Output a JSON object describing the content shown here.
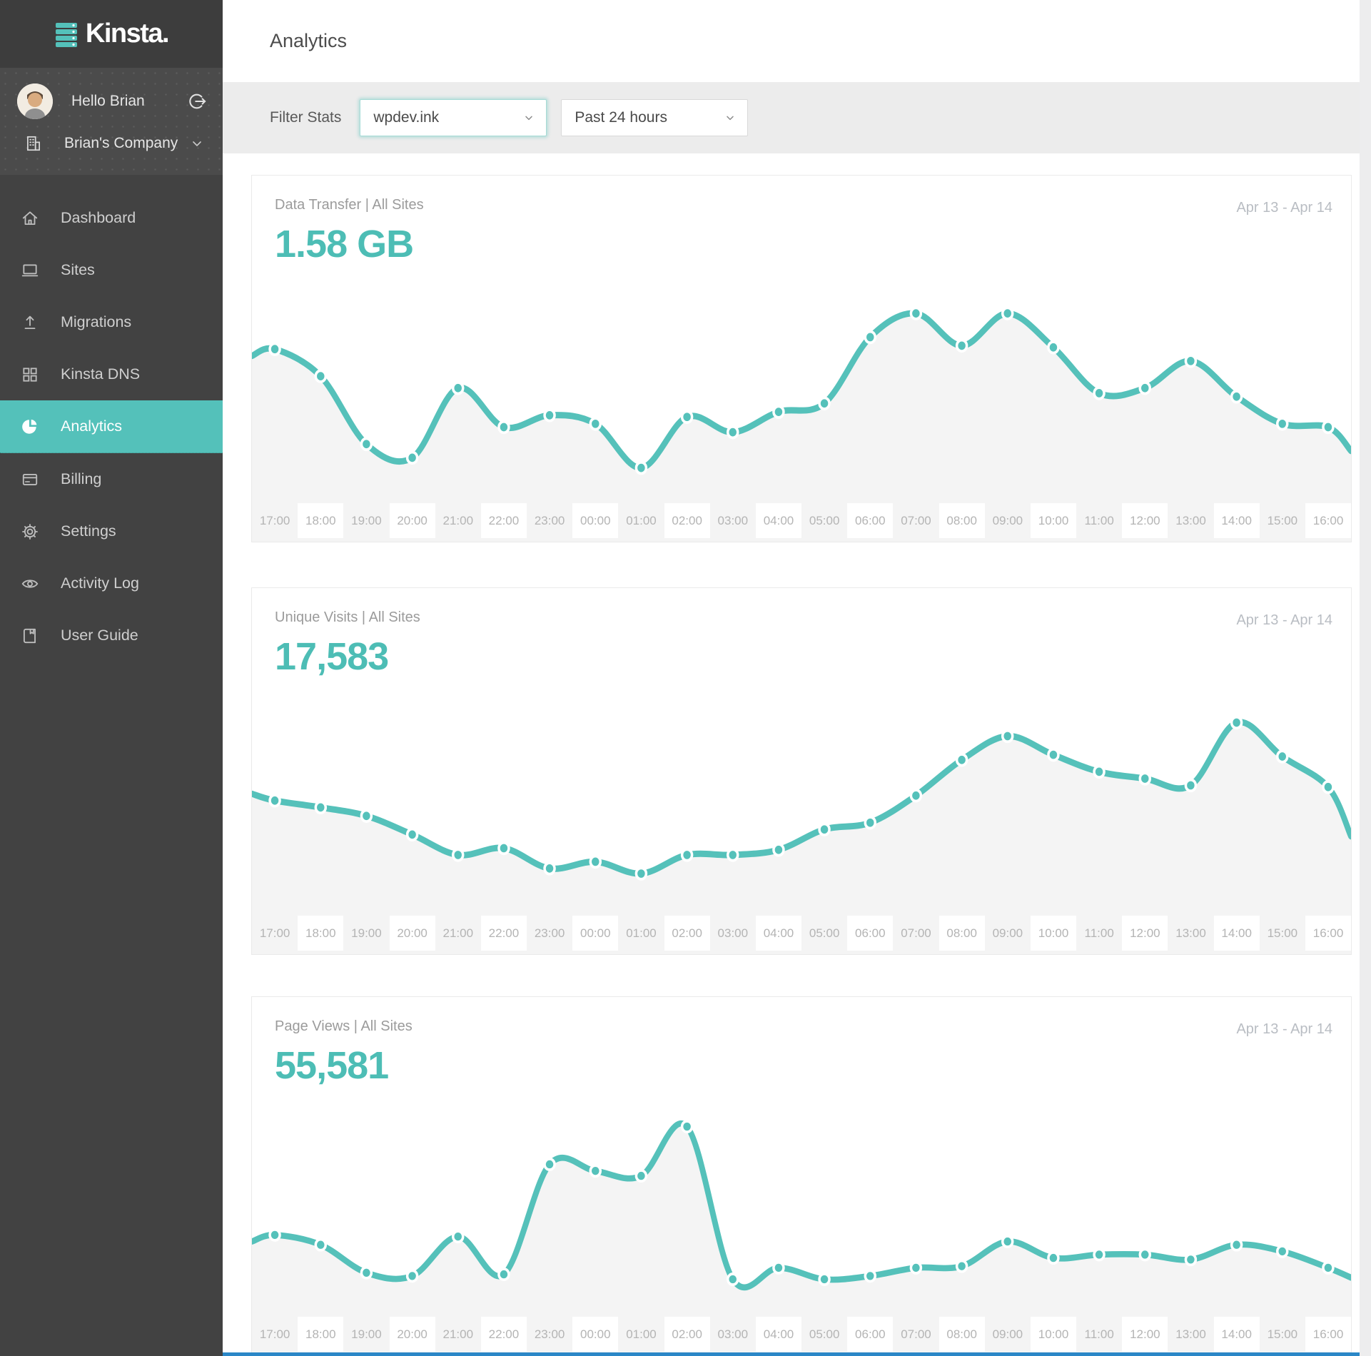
{
  "sidebar": {
    "logo_text": "Kinsta.",
    "greeting": "Hello Brian",
    "company": "Brian's Company",
    "items": [
      {
        "label": "Dashboard",
        "icon": "home-icon",
        "active": false
      },
      {
        "label": "Sites",
        "icon": "sites-icon",
        "active": false
      },
      {
        "label": "Migrations",
        "icon": "upload-icon",
        "active": false
      },
      {
        "label": "Kinsta DNS",
        "icon": "grid-icon",
        "active": false
      },
      {
        "label": "Analytics",
        "icon": "pie-chart-icon",
        "active": true
      },
      {
        "label": "Billing",
        "icon": "credit-card-icon",
        "active": false
      },
      {
        "label": "Settings",
        "icon": "gear-icon",
        "active": false
      },
      {
        "label": "Activity Log",
        "icon": "eye-icon",
        "active": false
      },
      {
        "label": "User Guide",
        "icon": "book-icon",
        "active": false
      }
    ]
  },
  "header": {
    "title": "Analytics"
  },
  "filters": {
    "label": "Filter Stats",
    "site_selected": "wpdev.ink",
    "range_selected": "Past 24 hours"
  },
  "colors": {
    "accent_teal": "#54c1ba",
    "stat_teal": "#4dbdb5",
    "sidebar_bg": "#424242",
    "sidebar_logo_bg": "#3d3d3d",
    "sidebar_user_bg": "#4b4b4b",
    "filter_band_bg": "#ececec",
    "chart_area_fill": "#f4f4f4",
    "x_label_text": "#b4b4b4",
    "bottom_bar_blue": "#2b87c7"
  },
  "chart_data": [
    {
      "type": "line",
      "label": "Data Transfer | All Sites",
      "stat": "1.58 GB",
      "date_range": "Apr 13 - Apr 14",
      "x_categories": [
        "17:00",
        "18:00",
        "19:00",
        "20:00",
        "21:00",
        "22:00",
        "23:00",
        "00:00",
        "01:00",
        "02:00",
        "03:00",
        "04:00",
        "05:00",
        "06:00",
        "07:00",
        "08:00",
        "09:00",
        "10:00",
        "11:00",
        "12:00",
        "13:00",
        "14:00",
        "15:00",
        "16:00"
      ],
      "values_relative_pct": [
        75,
        59,
        19,
        11,
        52,
        29,
        36,
        31,
        5,
        35,
        26,
        38,
        43,
        82,
        96,
        77,
        96,
        76,
        49,
        52,
        68,
        47,
        31,
        29
      ],
      "edge_left_pct": 71,
      "edge_right_pct": 15,
      "y_axis_shown": false,
      "grid": false,
      "line_color": "#55c1ba",
      "area_color": "#f4f4f4"
    },
    {
      "type": "line",
      "label": "Unique Visits | All Sites",
      "stat": "17,583",
      "date_range": "Apr 13 - Apr 14",
      "x_categories": [
        "17:00",
        "18:00",
        "19:00",
        "20:00",
        "21:00",
        "22:00",
        "23:00",
        "00:00",
        "01:00",
        "02:00",
        "03:00",
        "04:00",
        "05:00",
        "06:00",
        "07:00",
        "08:00",
        "09:00",
        "10:00",
        "11:00",
        "12:00",
        "13:00",
        "14:00",
        "15:00",
        "16:00"
      ],
      "values_relative_pct": [
        52,
        48,
        43,
        32,
        20,
        24,
        12,
        16,
        9,
        20,
        20,
        23,
        35,
        39,
        55,
        76,
        90,
        79,
        69,
        65,
        61,
        98,
        78,
        60
      ],
      "edge_left_pct": 56,
      "edge_right_pct": 31,
      "y_axis_shown": false,
      "grid": false,
      "line_color": "#55c1ba",
      "area_color": "#f4f4f4"
    },
    {
      "type": "line",
      "label": "Page Views | All Sites",
      "stat": "55,581",
      "date_range": "Apr 13 - Apr 14",
      "x_categories": [
        "17:00",
        "18:00",
        "19:00",
        "20:00",
        "21:00",
        "22:00",
        "23:00",
        "00:00",
        "01:00",
        "02:00",
        "03:00",
        "04:00",
        "05:00",
        "06:00",
        "07:00",
        "08:00",
        "09:00",
        "10:00",
        "11:00",
        "12:00",
        "13:00",
        "14:00",
        "15:00",
        "16:00"
      ],
      "values_relative_pct": [
        34,
        28,
        11,
        9,
        33,
        10,
        77,
        73,
        70,
        100,
        7,
        14,
        7,
        9,
        14,
        15,
        30,
        20,
        22,
        22,
        19,
        28,
        24,
        14
      ],
      "edge_left_pct": 30,
      "edge_right_pct": 8,
      "y_axis_shown": false,
      "grid": false,
      "line_color": "#55c1ba",
      "area_color": "#f4f4f4"
    }
  ]
}
